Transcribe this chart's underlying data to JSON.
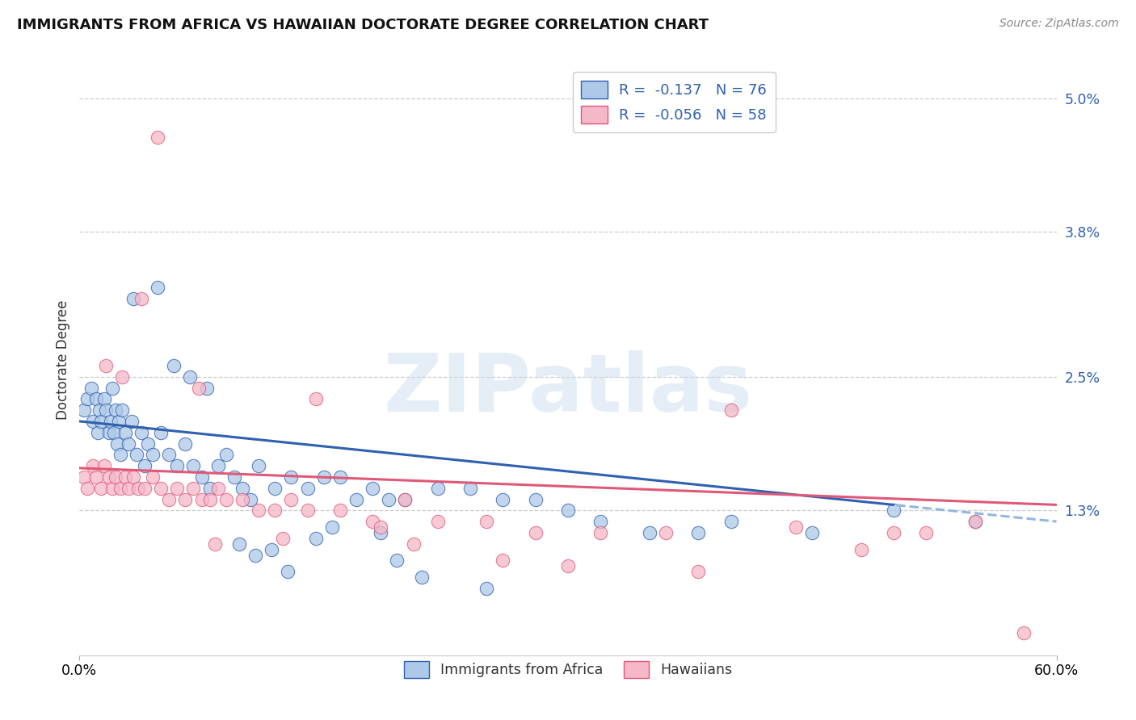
{
  "title": "IMMIGRANTS FROM AFRICA VS HAWAIIAN DOCTORATE DEGREE CORRELATION CHART",
  "source": "Source: ZipAtlas.com",
  "ylabel": "Doctorate Degree",
  "xlim": [
    0.0,
    60.0
  ],
  "ylim": [
    0.0,
    5.3
  ],
  "ytick_vals": [
    1.3,
    2.5,
    3.8,
    5.0
  ],
  "ytick_labels": [
    "1.3%",
    "2.5%",
    "3.8%",
    "5.0%"
  ],
  "color_blue": "#adc8e8",
  "color_pink": "#f5b8c8",
  "line_blue": "#3060b0",
  "line_pink": "#e05878",
  "line_dashed_color": "#90b8e0",
  "watermark": "ZIPatlas",
  "blue_line_x0": 0.0,
  "blue_line_y0": 2.1,
  "blue_line_x1": 60.0,
  "blue_line_y1": 1.2,
  "blue_solid_end": 50.0,
  "pink_line_x0": 0.0,
  "pink_line_y0": 1.68,
  "pink_line_x1": 60.0,
  "pink_line_y1": 1.35,
  "africa_x": [
    0.3,
    0.5,
    0.7,
    0.8,
    1.0,
    1.1,
    1.2,
    1.3,
    1.5,
    1.6,
    1.8,
    1.9,
    2.0,
    2.1,
    2.2,
    2.3,
    2.4,
    2.5,
    2.6,
    2.8,
    3.0,
    3.2,
    3.5,
    3.8,
    4.0,
    4.2,
    4.5,
    5.0,
    5.5,
    6.0,
    6.5,
    7.0,
    7.5,
    8.0,
    8.5,
    9.0,
    9.5,
    10.0,
    10.5,
    11.0,
    12.0,
    13.0,
    14.0,
    15.0,
    16.0,
    17.0,
    18.0,
    19.0,
    20.0,
    22.0,
    24.0,
    26.0,
    28.0,
    30.0,
    32.0,
    35.0,
    38.0,
    40.0,
    45.0,
    50.0,
    55.0,
    3.3,
    4.8,
    5.8,
    6.8,
    7.8,
    9.8,
    10.8,
    11.8,
    12.8,
    14.5,
    15.5,
    18.5,
    19.5,
    21.0,
    25.0
  ],
  "africa_y": [
    2.2,
    2.3,
    2.4,
    2.1,
    2.3,
    2.0,
    2.2,
    2.1,
    2.3,
    2.2,
    2.0,
    2.1,
    2.4,
    2.0,
    2.2,
    1.9,
    2.1,
    1.8,
    2.2,
    2.0,
    1.9,
    2.1,
    1.8,
    2.0,
    1.7,
    1.9,
    1.8,
    2.0,
    1.8,
    1.7,
    1.9,
    1.7,
    1.6,
    1.5,
    1.7,
    1.8,
    1.6,
    1.5,
    1.4,
    1.7,
    1.5,
    1.6,
    1.5,
    1.6,
    1.6,
    1.4,
    1.5,
    1.4,
    1.4,
    1.5,
    1.5,
    1.4,
    1.4,
    1.3,
    1.2,
    1.1,
    1.1,
    1.2,
    1.1,
    1.3,
    1.2,
    3.2,
    3.3,
    2.6,
    2.5,
    2.4,
    1.0,
    0.9,
    0.95,
    0.75,
    1.05,
    1.15,
    1.1,
    0.85,
    0.7,
    0.6
  ],
  "hawaii_x": [
    0.3,
    0.5,
    0.8,
    1.0,
    1.3,
    1.5,
    1.8,
    2.0,
    2.2,
    2.5,
    2.8,
    3.0,
    3.3,
    3.6,
    4.0,
    4.5,
    5.0,
    5.5,
    6.0,
    6.5,
    7.0,
    7.5,
    8.0,
    8.5,
    9.0,
    10.0,
    11.0,
    12.0,
    13.0,
    14.0,
    16.0,
    18.0,
    20.0,
    22.0,
    25.0,
    28.0,
    32.0,
    36.0,
    40.0,
    44.0,
    50.0,
    55.0,
    58.0,
    1.6,
    2.6,
    3.8,
    4.8,
    7.3,
    8.3,
    12.5,
    14.5,
    18.5,
    20.5,
    26.0,
    30.0,
    38.0,
    48.0,
    52.0
  ],
  "hawaii_y": [
    1.6,
    1.5,
    1.7,
    1.6,
    1.5,
    1.7,
    1.6,
    1.5,
    1.6,
    1.5,
    1.6,
    1.5,
    1.6,
    1.5,
    1.5,
    1.6,
    1.5,
    1.4,
    1.5,
    1.4,
    1.5,
    1.4,
    1.4,
    1.5,
    1.4,
    1.4,
    1.3,
    1.3,
    1.4,
    1.3,
    1.3,
    1.2,
    1.4,
    1.2,
    1.2,
    1.1,
    1.1,
    1.1,
    2.2,
    1.15,
    1.1,
    1.2,
    0.2,
    2.6,
    2.5,
    3.2,
    4.65,
    2.4,
    1.0,
    1.05,
    2.3,
    1.15,
    1.0,
    0.85,
    0.8,
    0.75,
    0.95,
    1.1
  ]
}
